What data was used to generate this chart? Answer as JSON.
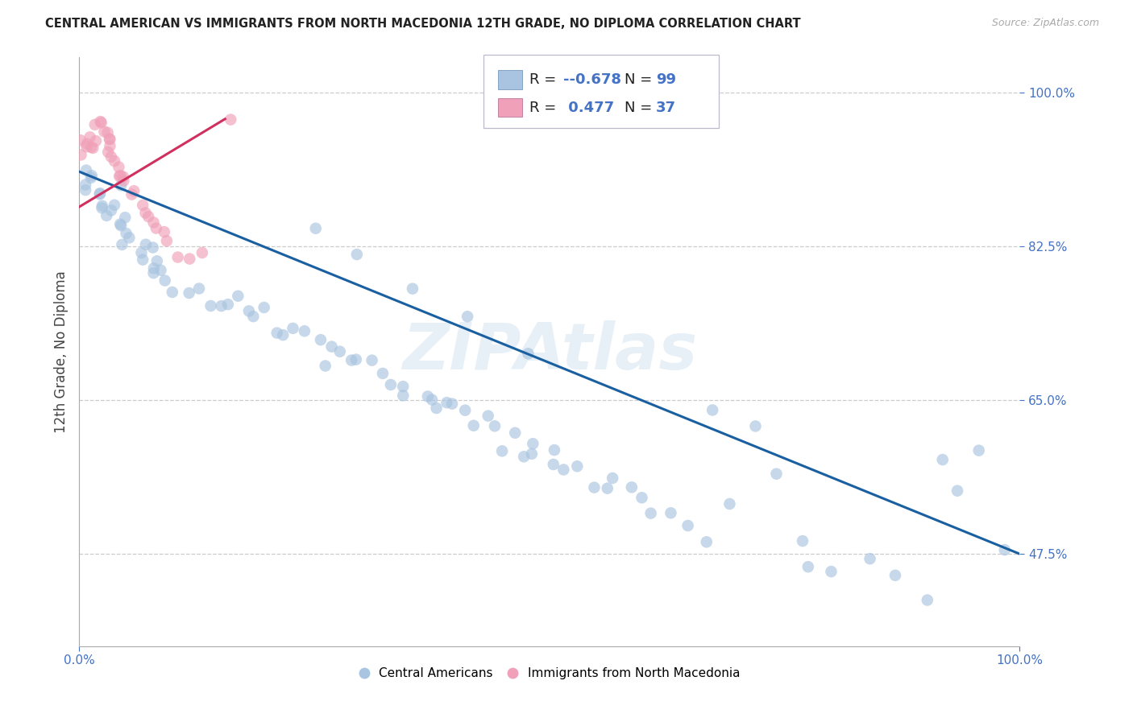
{
  "title": "CENTRAL AMERICAN VS IMMIGRANTS FROM NORTH MACEDONIA 12TH GRADE, NO DIPLOMA CORRELATION CHART",
  "source": "Source: ZipAtlas.com",
  "ylabel": "12th Grade, No Diploma",
  "watermark": "ZIPAtlas",
  "xmin": 0.0,
  "xmax": 1.0,
  "ymin": 0.37,
  "ymax": 1.04,
  "blue_color": "#a8c4e0",
  "blue_line_color": "#1a5fa0",
  "pink_color": "#f0a0b8",
  "pink_line_color": "#d03060",
  "accent_color": "#4472c4",
  "blue_scatter_x": [
    0.005,
    0.01,
    0.012,
    0.015,
    0.018,
    0.02,
    0.022,
    0.025,
    0.028,
    0.03,
    0.032,
    0.035,
    0.038,
    0.04,
    0.042,
    0.045,
    0.048,
    0.05,
    0.055,
    0.06,
    0.065,
    0.07,
    0.075,
    0.08,
    0.085,
    0.09,
    0.095,
    0.1,
    0.11,
    0.12,
    0.13,
    0.14,
    0.15,
    0.16,
    0.17,
    0.18,
    0.19,
    0.2,
    0.21,
    0.22,
    0.23,
    0.24,
    0.25,
    0.26,
    0.27,
    0.28,
    0.29,
    0.3,
    0.31,
    0.32,
    0.33,
    0.34,
    0.35,
    0.36,
    0.37,
    0.38,
    0.39,
    0.4,
    0.41,
    0.42,
    0.43,
    0.44,
    0.45,
    0.46,
    0.47,
    0.48,
    0.49,
    0.5,
    0.51,
    0.52,
    0.53,
    0.545,
    0.56,
    0.57,
    0.58,
    0.59,
    0.61,
    0.63,
    0.65,
    0.67,
    0.68,
    0.7,
    0.72,
    0.74,
    0.76,
    0.78,
    0.81,
    0.84,
    0.87,
    0.9,
    0.92,
    0.94,
    0.96,
    0.98,
    0.25,
    0.3,
    0.35,
    0.42,
    0.48
  ],
  "blue_scatter_y": [
    0.91,
    0.9,
    0.915,
    0.895,
    0.885,
    0.905,
    0.89,
    0.88,
    0.875,
    0.87,
    0.865,
    0.86,
    0.855,
    0.855,
    0.848,
    0.845,
    0.84,
    0.838,
    0.832,
    0.828,
    0.82,
    0.815,
    0.812,
    0.808,
    0.802,
    0.8,
    0.795,
    0.79,
    0.785,
    0.778,
    0.775,
    0.77,
    0.765,
    0.758,
    0.755,
    0.75,
    0.745,
    0.74,
    0.735,
    0.73,
    0.725,
    0.72,
    0.715,
    0.71,
    0.705,
    0.7,
    0.695,
    0.69,
    0.685,
    0.68,
    0.675,
    0.67,
    0.665,
    0.66,
    0.655,
    0.65,
    0.645,
    0.64,
    0.635,
    0.63,
    0.625,
    0.618,
    0.612,
    0.608,
    0.602,
    0.598,
    0.592,
    0.588,
    0.582,
    0.578,
    0.572,
    0.565,
    0.558,
    0.552,
    0.545,
    0.54,
    0.53,
    0.52,
    0.51,
    0.5,
    0.648,
    0.54,
    0.62,
    0.56,
    0.49,
    0.47,
    0.458,
    0.465,
    0.442,
    0.43,
    0.58,
    0.55,
    0.61,
    0.49,
    0.85,
    0.82,
    0.78,
    0.75,
    0.7
  ],
  "pink_scatter_x": [
    0.003,
    0.005,
    0.007,
    0.009,
    0.011,
    0.013,
    0.015,
    0.017,
    0.019,
    0.021,
    0.023,
    0.025,
    0.027,
    0.029,
    0.031,
    0.033,
    0.035,
    0.037,
    0.039,
    0.041,
    0.043,
    0.045,
    0.047,
    0.05,
    0.055,
    0.06,
    0.065,
    0.07,
    0.075,
    0.08,
    0.085,
    0.09,
    0.095,
    0.105,
    0.115,
    0.13,
    0.16
  ],
  "pink_scatter_y": [
    0.93,
    0.925,
    0.935,
    0.94,
    0.945,
    0.948,
    0.952,
    0.955,
    0.96,
    0.965,
    0.962,
    0.958,
    0.955,
    0.95,
    0.945,
    0.94,
    0.935,
    0.93,
    0.925,
    0.92,
    0.915,
    0.91,
    0.905,
    0.9,
    0.892,
    0.884,
    0.875,
    0.868,
    0.86,
    0.852,
    0.845,
    0.838,
    0.83,
    0.822,
    0.815,
    0.808,
    0.97
  ],
  "blue_line_x0": 0.0,
  "blue_line_x1": 1.0,
  "blue_line_y0": 0.91,
  "blue_line_y1": 0.475,
  "pink_line_x0": 0.0,
  "pink_line_x1": 0.155,
  "pink_line_y0": 0.87,
  "pink_line_y1": 0.97,
  "ytick_vals": [
    0.475,
    0.65,
    0.825,
    1.0
  ],
  "ytick_labels": [
    "47.5%",
    "65.0%",
    "82.5%",
    "100.0%"
  ],
  "hgrid_vals": [
    0.475,
    0.65,
    0.825,
    1.0
  ],
  "xtick_vals": [
    0.0,
    1.0
  ],
  "xtick_labels": [
    "0.0%",
    "100.0%"
  ],
  "legend1_r_val": "-0.678",
  "legend1_n_val": "99",
  "legend2_r_val": "0.477",
  "legend2_n_val": "37",
  "bottom_label1": "Central Americans",
  "bottom_label2": "Immigrants from North Macedonia"
}
